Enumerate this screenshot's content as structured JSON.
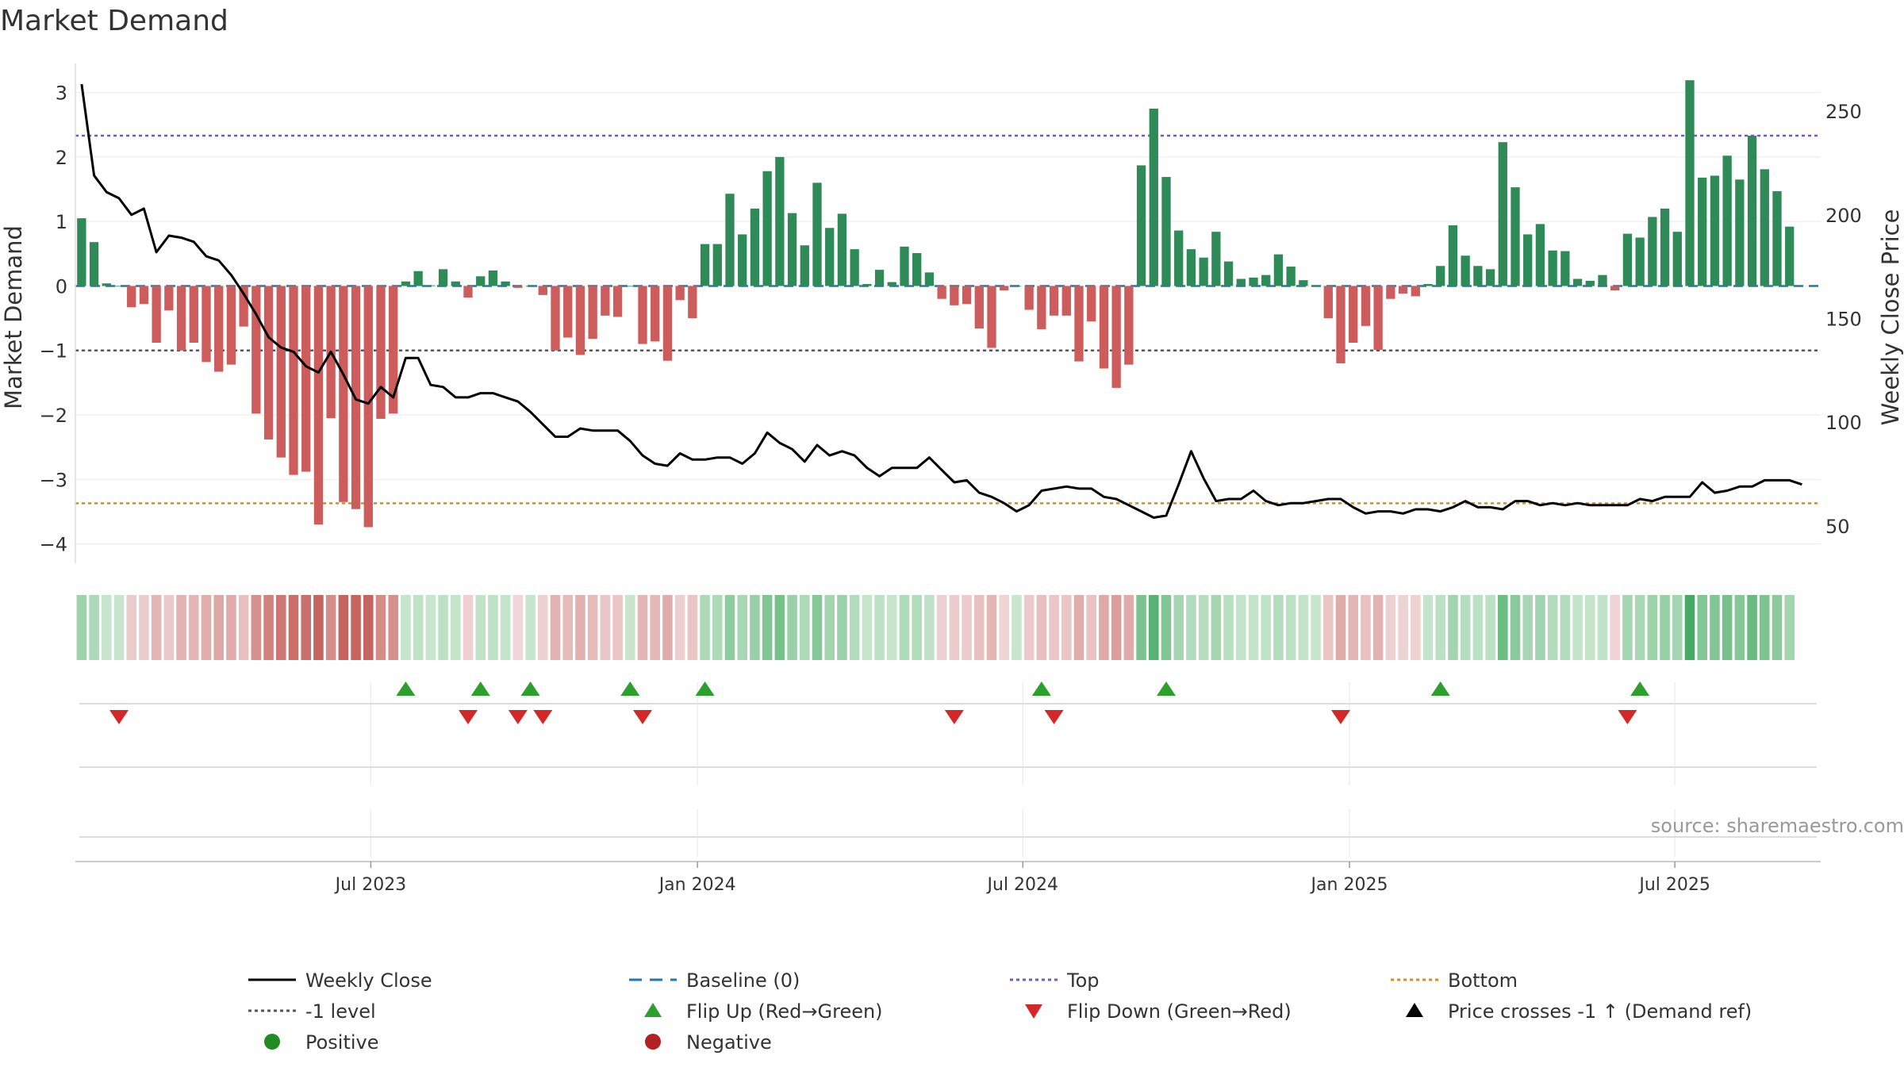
{
  "chart_data": {
    "type": "bar",
    "title": "Market Demand",
    "ylabel": "Market Demand",
    "y2label": "Weekly Close Price",
    "source": "source: sharemaestro.com",
    "ylim": [
      -4.3,
      3.45
    ],
    "y_ticks": [
      3,
      2,
      1,
      0,
      -1,
      -2,
      -3,
      -4
    ],
    "y_tick_labels": [
      "3",
      "2",
      "1",
      "0",
      "−1",
      "−2",
      "−3",
      "−4"
    ],
    "y2lim": [
      32,
      273
    ],
    "y2_ticks": [
      250,
      200,
      150,
      100,
      50
    ],
    "y2_tick_labels": [
      "250",
      "200",
      "150",
      "100",
      "50"
    ],
    "x_ticks": [
      23.2,
      49.4,
      75.5,
      101.7,
      127.8
    ],
    "x_tick_labels": [
      "Jul 2023",
      "Jan 2024",
      "Jul 2024",
      "Jan 2025",
      "Jul 2025"
    ],
    "x_range": [
      -0.5,
      139.5
    ],
    "reference_lines": {
      "top": 2.33,
      "bottom": -3.37,
      "minus_one": -1,
      "baseline": 0
    },
    "colors": {
      "positive_bar": "#2e8b57",
      "negative_bar": "#cd5c5c",
      "close_line": "#000000",
      "baseline": "#1f77b4",
      "top_line": "#6a5acd",
      "bottom_line": "#e08a1e",
      "minus_one_line": "#555566",
      "flip_up": "#2ca02c",
      "flip_down": "#d62728",
      "positive_dot": "#228b22",
      "negative_dot": "#b22222"
    },
    "series": [
      {
        "name": "Market Demand",
        "values": [
          1.05,
          0.68,
          0.04,
          0.0,
          -0.33,
          -0.28,
          -0.88,
          -0.38,
          -1.0,
          -0.88,
          -1.18,
          -1.33,
          -1.22,
          -0.63,
          -1.98,
          -2.38,
          -2.66,
          -2.93,
          -2.88,
          -3.7,
          -2.05,
          -3.35,
          -3.46,
          -3.74,
          -2.06,
          -1.98,
          0.07,
          0.23,
          0.01,
          0.26,
          0.07,
          -0.18,
          0.15,
          0.24,
          0.07,
          -0.03,
          0.0,
          -0.14,
          -1.0,
          -0.8,
          -1.07,
          -0.82,
          -0.46,
          -0.48,
          0.0,
          -0.9,
          -0.86,
          -1.16,
          -0.22,
          -0.5,
          0.65,
          0.65,
          1.43,
          0.8,
          1.2,
          1.78,
          2.0,
          1.13,
          0.63,
          1.6,
          0.9,
          1.12,
          0.57,
          0.03,
          0.25,
          0.06,
          0.61,
          0.51,
          0.21,
          -0.2,
          -0.3,
          -0.28,
          -0.66,
          -0.96,
          -0.07,
          0.0,
          -0.37,
          -0.67,
          -0.46,
          -0.46,
          -1.17,
          -0.55,
          -1.28,
          -1.58,
          -1.22,
          1.87,
          2.75,
          1.69,
          0.86,
          0.57,
          0.44,
          0.84,
          0.38,
          0.11,
          0.13,
          0.17,
          0.49,
          0.3,
          0.09,
          0.0,
          -0.5,
          -1.2,
          -0.88,
          -0.62,
          -0.99,
          -0.2,
          -0.12,
          -0.16,
          0.03,
          0.31,
          0.94,
          0.47,
          0.31,
          0.26,
          2.23,
          1.53,
          0.8,
          0.96,
          0.55,
          0.54,
          0.11,
          0.08,
          0.17,
          -0.07,
          0.81,
          0.75,
          1.07,
          1.2,
          0.84,
          3.19,
          1.68,
          1.71,
          2.02,
          1.65,
          2.33,
          1.81,
          1.47,
          0.92
        ]
      },
      {
        "name": "Weekly Close",
        "values": [
          263,
          219,
          211,
          208,
          200,
          203,
          182,
          190,
          189,
          187,
          180,
          178,
          171,
          162,
          152,
          141,
          136,
          134,
          127,
          124,
          134,
          123,
          111,
          109,
          117,
          112,
          131,
          131,
          118,
          117,
          112,
          112,
          114,
          114,
          112,
          110,
          105,
          99,
          93,
          93,
          97,
          96,
          96,
          96,
          91,
          84,
          80,
          79,
          85,
          82,
          82,
          83,
          83,
          80,
          85,
          95,
          90,
          87,
          81,
          89,
          84,
          86,
          84,
          78,
          74,
          78,
          78,
          78,
          83,
          77,
          71,
          72,
          66,
          64,
          61,
          57,
          60,
          67,
          68,
          69,
          68,
          68,
          64,
          63,
          60,
          57,
          54,
          55,
          70,
          86,
          73,
          62,
          63,
          63,
          67,
          62,
          60,
          61,
          61,
          62,
          63,
          63,
          59,
          56,
          57,
          57,
          56,
          58,
          58,
          57,
          59,
          62,
          59,
          59,
          58,
          62,
          62,
          60,
          61,
          60,
          61,
          60,
          60,
          60,
          60,
          63,
          62,
          64,
          64,
          64,
          71,
          66,
          67,
          69,
          69,
          72,
          72,
          72,
          70
        ]
      }
    ],
    "flip_up_indices": [
      26,
      32,
      36,
      44,
      50,
      77,
      87,
      109,
      125
    ],
    "flip_down_indices": [
      3,
      31,
      35,
      37,
      45,
      70,
      78,
      101,
      124
    ],
    "legend": [
      {
        "label": "Weekly Close",
        "kind": "line-solid",
        "color": "#000000"
      },
      {
        "label": "Baseline (0)",
        "kind": "line-dash",
        "color": "#1f77b4"
      },
      {
        "label": "Top",
        "kind": "line-dot",
        "color": "#6a5acd"
      },
      {
        "label": "Bottom",
        "kind": "line-dot",
        "color": "#e08a1e"
      },
      {
        "label": "-1 level",
        "kind": "line-dot",
        "color": "#555566"
      },
      {
        "label": "Flip Up (Red→Green)",
        "kind": "tri-up",
        "color": "#2ca02c"
      },
      {
        "label": "Flip Down (Green→Red)",
        "kind": "tri-down",
        "color": "#d62728"
      },
      {
        "label": "Price crosses -1 ↑ (Demand ref)",
        "kind": "tri-up",
        "color": "#000000"
      },
      {
        "label": "Positive",
        "kind": "dot",
        "color": "#228b22"
      },
      {
        "label": "Negative",
        "kind": "dot",
        "color": "#b22222"
      }
    ],
    "legend_position": "bottom"
  }
}
